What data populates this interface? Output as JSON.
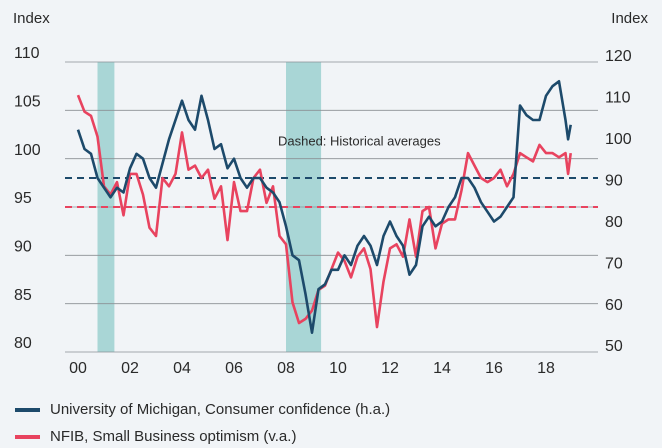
{
  "chart_data": {
    "type": "line",
    "y_axis_label": "Index",
    "y2_axis_label": "Index",
    "annotation": "Dashed: Historical averages",
    "x": [
      2000,
      2000.25,
      2000.5,
      2000.75,
      2001,
      2001.25,
      2001.5,
      2001.75,
      2002,
      2002.25,
      2002.5,
      2002.75,
      2003,
      2003.25,
      2003.5,
      2003.75,
      2004,
      2004.25,
      2004.5,
      2004.75,
      2005,
      2005.25,
      2005.5,
      2005.75,
      2006,
      2006.25,
      2006.5,
      2006.75,
      2007,
      2007.25,
      2007.5,
      2007.75,
      2008,
      2008.25,
      2008.5,
      2008.75,
      2009,
      2009.25,
      2009.5,
      2009.75,
      2010,
      2010.25,
      2010.5,
      2010.75,
      2011,
      2011.25,
      2011.5,
      2011.75,
      2012,
      2012.25,
      2012.5,
      2012.75,
      2013,
      2013.25,
      2013.5,
      2013.75,
      2014,
      2014.25,
      2014.5,
      2014.75,
      2015,
      2015.25,
      2015.5,
      2015.75,
      2016,
      2016.25,
      2016.5,
      2016.75,
      2017,
      2017.25,
      2017.5,
      2017.75,
      2018,
      2018.25,
      2018.5,
      2018.75,
      2018.85,
      2018.95
    ],
    "series": [
      {
        "name": "University of Michigan, Consumer confidence (h.a.)",
        "color": "#1d4a6b",
        "axis": "y",
        "values": [
          103,
          101,
          100.5,
          98,
          97,
          96,
          97,
          96.5,
          99,
          100.5,
          100,
          98,
          97,
          99.5,
          102,
          104,
          106,
          104,
          103,
          106.5,
          104,
          101,
          101.5,
          99,
          100,
          98,
          97,
          98,
          98,
          97,
          96.5,
          95.5,
          93,
          90,
          89.5,
          86,
          82,
          86.5,
          87,
          88.5,
          88.5,
          90,
          89,
          91,
          92,
          91,
          89,
          92,
          93.5,
          92,
          91,
          88,
          89,
          93,
          94,
          93,
          93.5,
          95,
          96,
          98,
          98,
          97,
          95.5,
          94.5,
          93.5,
          94,
          95,
          96,
          105.5,
          104.5,
          104,
          104,
          106.5,
          107.5,
          108,
          104,
          102,
          103.5
        ]
      },
      {
        "name": "NFIB, Small Business optimism (v.a.)",
        "color": "#e8435f",
        "axis": "y2",
        "values": [
          112,
          108,
          107,
          102,
          90,
          88,
          91,
          83,
          93,
          93,
          88,
          80,
          78,
          92,
          90,
          93,
          103,
          94,
          95,
          92,
          94,
          87,
          90,
          77,
          91,
          84,
          84,
          92,
          94,
          86,
          90,
          78,
          76,
          62,
          57,
          58,
          60,
          65,
          66,
          70,
          74,
          72,
          68,
          73,
          75,
          70,
          56,
          67,
          75,
          76,
          73,
          82,
          73,
          84,
          85,
          75,
          81,
          82,
          82,
          89,
          98,
          95,
          92,
          91,
          92,
          94,
          90,
          93,
          98,
          97,
          96,
          100,
          98,
          98,
          97,
          98,
          93,
          98
        ]
      }
    ],
    "averages": [
      {
        "value": 98,
        "axis": "y",
        "color": "#1d4a6b"
      },
      {
        "value": 85,
        "axis": "y2",
        "color": "#e8435f"
      }
    ],
    "shaded_periods": [
      [
        2000.75,
        2001.4
      ],
      [
        2008,
        2009.35
      ]
    ],
    "shade_color": "#a9d6d6",
    "xlim": [
      1999.5,
      2020
    ],
    "xticks": [
      {
        "value": 2000,
        "label": "00"
      },
      {
        "value": 2002,
        "label": "02"
      },
      {
        "value": 2004,
        "label": "04"
      },
      {
        "value": 2006,
        "label": "06"
      },
      {
        "value": 2008,
        "label": "08"
      },
      {
        "value": 2010,
        "label": "10"
      },
      {
        "value": 2012,
        "label": "12"
      },
      {
        "value": 2014,
        "label": "14"
      },
      {
        "value": 2016,
        "label": "16"
      },
      {
        "value": 2018,
        "label": "18"
      }
    ],
    "ylim": [
      80,
      110
    ],
    "yticks": [
      80,
      85,
      90,
      95,
      100,
      105,
      110
    ],
    "y2lim": [
      50,
      120
    ],
    "y2ticks": [
      50,
      60,
      70,
      80,
      90,
      100,
      110,
      120
    ],
    "grid": true
  }
}
